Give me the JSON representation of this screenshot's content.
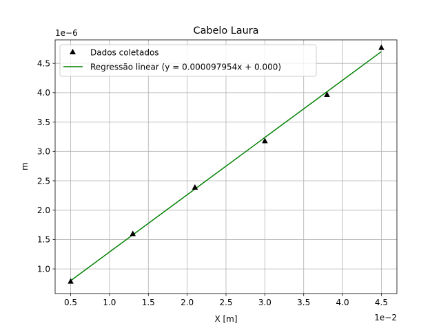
{
  "chart_data": {
    "type": "scatter",
    "title": "Cabelo Laura",
    "xlabel": "X [m]",
    "ylabel": "m",
    "x_offset_text": "1e−2",
    "y_offset_text": "1e−6",
    "x_scale": 0.01,
    "y_scale": 1e-06,
    "xlim": [
      0.003,
      0.047
    ],
    "ylim": [
      5.8e-07,
      4.9e-06
    ],
    "x_ticks": [
      0.005,
      0.01,
      0.015,
      0.02,
      0.025,
      0.03,
      0.035,
      0.04,
      0.045
    ],
    "x_tick_labels": [
      "0.5",
      "1.0",
      "1.5",
      "2.0",
      "2.5",
      "3.0",
      "3.5",
      "4.0",
      "4.5"
    ],
    "y_ticks": [
      1e-06,
      1.5e-06,
      2e-06,
      2.5e-06,
      3e-06,
      3.5e-06,
      4e-06,
      4.5e-06
    ],
    "y_tick_labels": [
      "1.0",
      "1.5",
      "2.0",
      "2.5",
      "3.0",
      "3.5",
      "4.0",
      "4.5"
    ],
    "grid": true,
    "legend_position": "upper-left",
    "series": [
      {
        "name": "Dados coletados",
        "kind": "scatter",
        "marker": "triangle-up",
        "color": "#000000",
        "x": [
          0.005,
          0.013,
          0.021,
          0.03,
          0.038,
          0.045
        ],
        "y": [
          7.9e-07,
          1.6e-06,
          2.39e-06,
          3.18e-06,
          3.97e-06,
          4.77e-06
        ]
      },
      {
        "name": "Regressão linear (y = 0.000097954x + 0.000)",
        "kind": "line",
        "color": "#008000",
        "x": [
          0.005,
          0.045
        ],
        "y": [
          8e-07,
          4.7e-06
        ]
      }
    ]
  }
}
